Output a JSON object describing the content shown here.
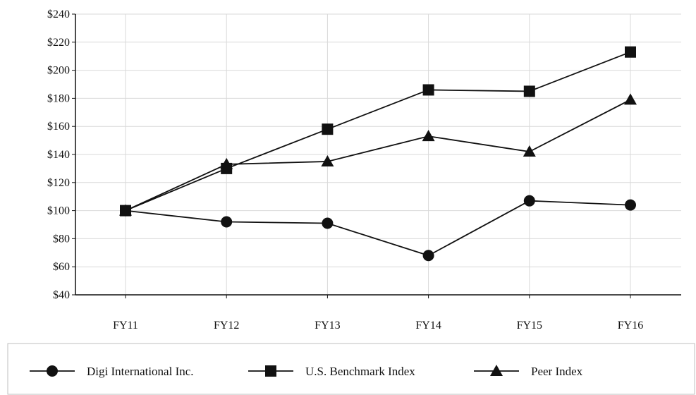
{
  "chart_data": {
    "type": "line",
    "categories": [
      "FY11",
      "FY12",
      "FY13",
      "FY14",
      "FY15",
      "FY16"
    ],
    "ylim": [
      40,
      240
    ],
    "yticks": [
      40,
      60,
      80,
      100,
      120,
      140,
      160,
      180,
      200,
      220,
      240
    ],
    "ytick_labels": [
      "$40",
      "$60",
      "$80",
      "$100",
      "$120",
      "$140",
      "$160",
      "$180",
      "$200",
      "$220",
      "$240"
    ],
    "grid": true,
    "legend_position": "bottom",
    "series": [
      {
        "name": "Digi International Inc.",
        "marker": "circle",
        "values": [
          100,
          92,
          91,
          68,
          107,
          104
        ]
      },
      {
        "name": "U.S. Benchmark Index",
        "marker": "square",
        "values": [
          100,
          130,
          158,
          186,
          185,
          213
        ]
      },
      {
        "name": "Peer Index",
        "marker": "triangle",
        "values": [
          100,
          133,
          135,
          153,
          142,
          179
        ]
      }
    ],
    "line_color": "#111111",
    "grid_color": "#d9d9d9"
  }
}
